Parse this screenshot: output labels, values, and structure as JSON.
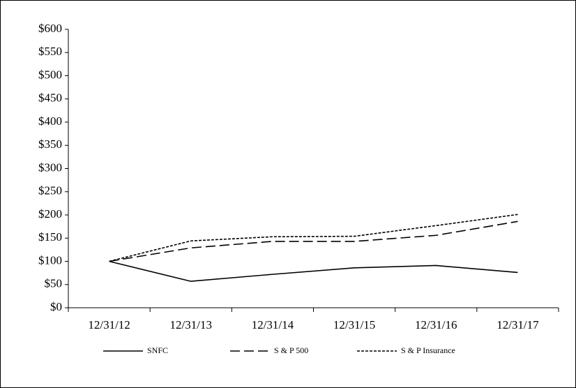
{
  "chart_data": {
    "type": "line",
    "categories": [
      "12/31/12",
      "12/31/13",
      "12/31/14",
      "12/31/15",
      "12/31/16",
      "12/31/17"
    ],
    "series": [
      {
        "name": "SNFC",
        "color": "#000000",
        "dash": "solid",
        "values": [
          100,
          57,
          72,
          86,
          91,
          76
        ]
      },
      {
        "name": "S & P 500",
        "color": "#000000",
        "dash": "dashed",
        "values": [
          100,
          129,
          143,
          143,
          156,
          186
        ]
      },
      {
        "name": "S & P Insurance",
        "color": "#000000",
        "dash": "dotted",
        "values": [
          100,
          144,
          153,
          154,
          177,
          201
        ]
      }
    ],
    "ylim": [
      0,
      600
    ],
    "yticks": [
      {
        "value": 0,
        "label": "$0"
      },
      {
        "value": 50,
        "label": "$50"
      },
      {
        "value": 100,
        "label": "$100"
      },
      {
        "value": 150,
        "label": "$150"
      },
      {
        "value": 200,
        "label": "$200"
      },
      {
        "value": 250,
        "label": "$250"
      },
      {
        "value": 300,
        "label": "$300"
      },
      {
        "value": 350,
        "label": "$350"
      },
      {
        "value": 400,
        "label": "$400"
      },
      {
        "value": 450,
        "label": "$450"
      },
      {
        "value": 500,
        "label": "$500"
      },
      {
        "value": 550,
        "label": "$550"
      },
      {
        "value": 600,
        "label": "$600"
      }
    ],
    "grid": false,
    "legend": "bottom"
  }
}
